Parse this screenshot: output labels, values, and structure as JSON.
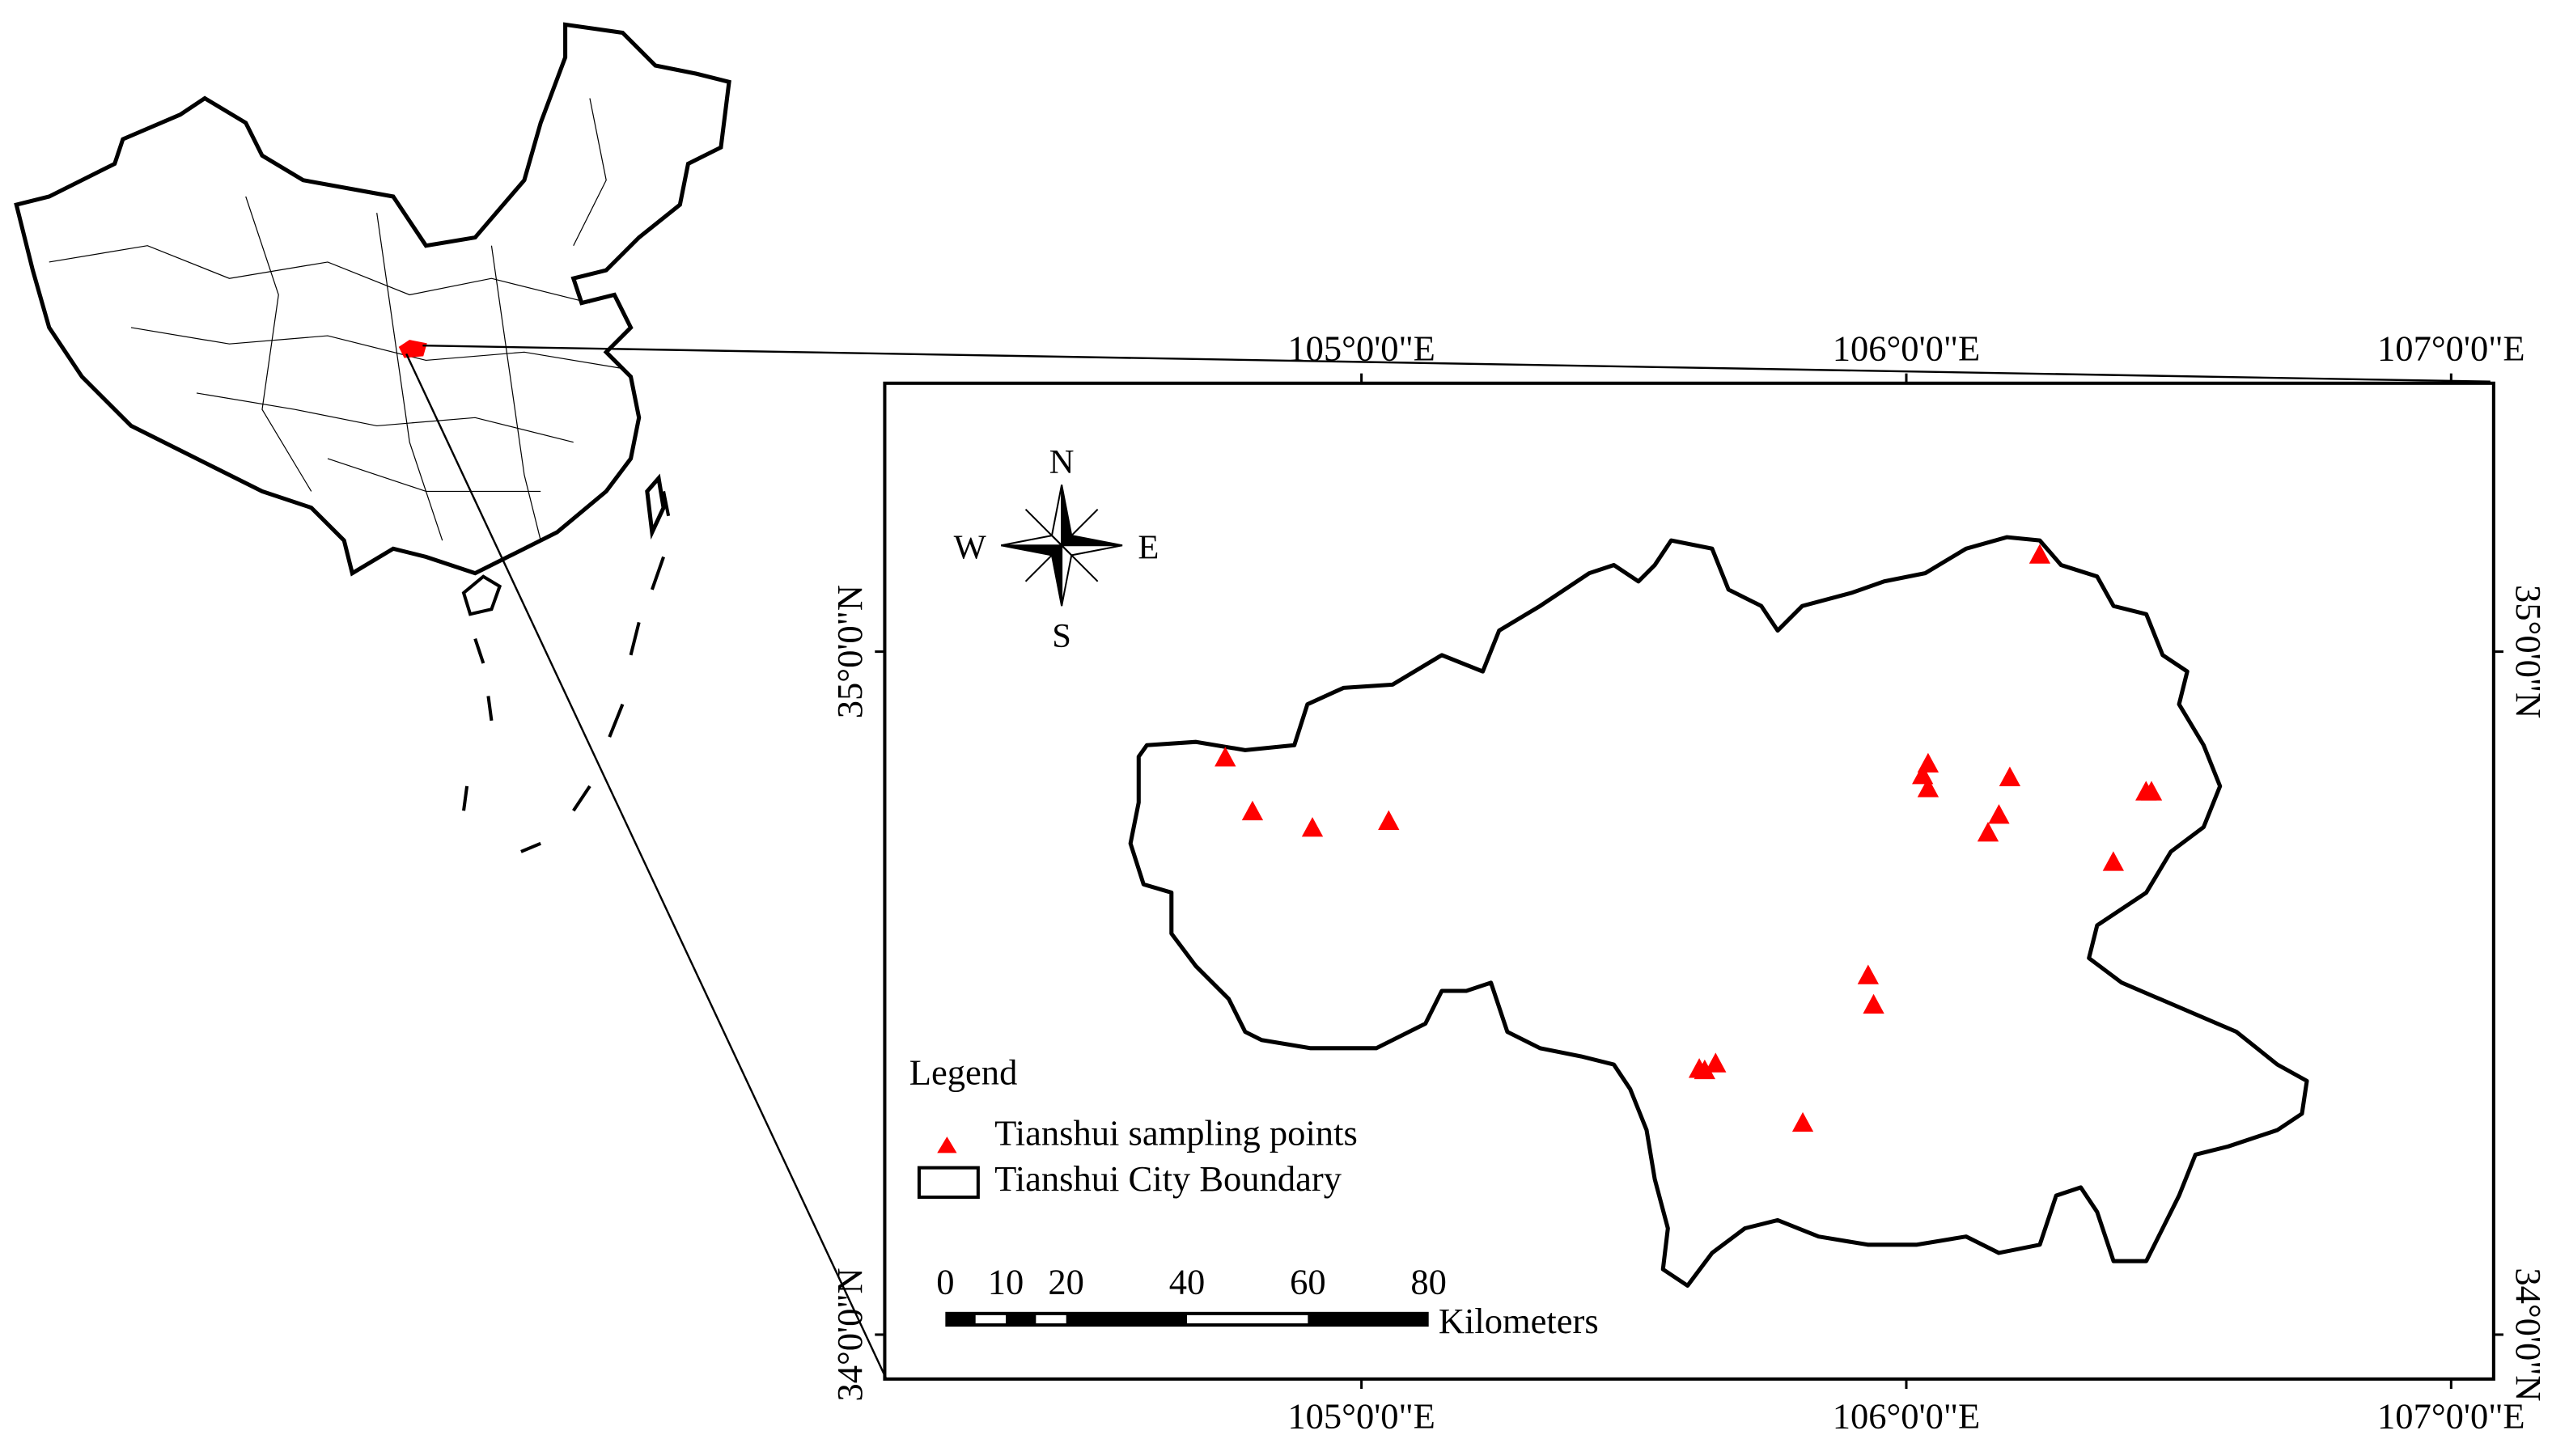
{
  "map": {
    "xlim": [
      104.125,
      107.078
    ],
    "ylim": [
      33.935,
      35.393
    ],
    "lon_ticks": [
      {
        "value": 105,
        "label": "105°0'0\"E"
      },
      {
        "value": 106,
        "label": "106°0'0\"E"
      },
      {
        "value": 107,
        "label": "107°0'0\"E"
      }
    ],
    "lat_ticks": [
      {
        "value": 35,
        "label": "35°0'0\"N"
      },
      {
        "value": 34,
        "label": "34°0'0\"N"
      }
    ],
    "compass": {
      "n": "N",
      "e": "E",
      "s": "S",
      "w": "W"
    },
    "legend_title": "Legend",
    "points": {
      "name": "Tianshui sampling points",
      "color": "#ff0000",
      "lon": [
        104.75,
        104.8,
        104.91,
        105.05,
        106.245,
        106.04,
        106.03,
        106.04,
        106.19,
        106.17,
        106.15,
        106.44,
        106.45,
        106.38,
        105.93,
        105.94,
        105.62,
        105.65,
        105.63,
        105.81
      ],
      "lat": [
        34.844,
        34.765,
        34.741,
        34.751,
        35.141,
        34.835,
        34.818,
        34.799,
        34.815,
        34.76,
        34.734,
        34.794,
        34.794,
        34.691,
        34.525,
        34.482,
        34.388,
        34.396,
        34.386,
        34.309
      ]
    },
    "boundary_name": "Tianshui City Boundary",
    "scale_bar": {
      "ticks": [
        0,
        10,
        20,
        40,
        60,
        80
      ],
      "unit": "Kilometers"
    }
  }
}
